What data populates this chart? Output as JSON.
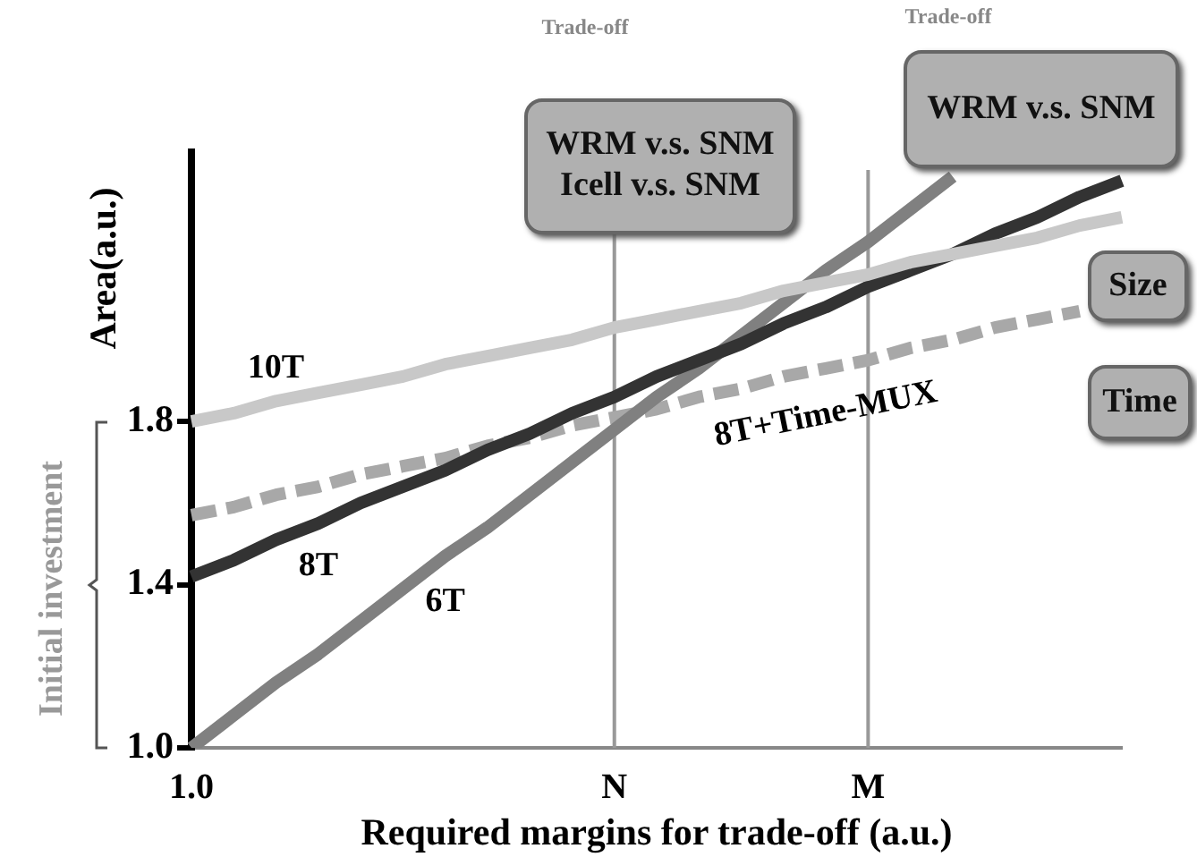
{
  "chart_data": {
    "type": "line",
    "xlabel": "Required margins for trade-off (a.u.)",
    "ylabel": "Area(a.u.)",
    "categories": [
      "1.0",
      null,
      null,
      null,
      null,
      null,
      null,
      null,
      null,
      null,
      "N",
      null,
      null,
      null,
      null,
      null,
      "M",
      null,
      null,
      null,
      null,
      null,
      null
    ],
    "series": [
      {
        "name": "10T",
        "color": "#c8c8c8",
        "values": [
          1.8,
          1.82,
          1.85,
          1.87,
          1.89,
          1.91,
          1.94,
          1.96,
          1.98,
          2.0,
          2.03,
          2.05,
          2.07,
          2.09,
          2.12,
          2.14,
          2.16,
          2.19,
          2.21,
          2.23,
          2.25,
          2.28,
          2.3
        ]
      },
      {
        "name": "8T",
        "color": "#333333",
        "values": [
          1.42,
          1.46,
          1.51,
          1.55,
          1.6,
          1.64,
          1.68,
          1.73,
          1.77,
          1.82,
          1.86,
          1.91,
          1.95,
          1.99,
          2.04,
          2.08,
          2.13,
          2.17,
          2.21,
          2.26,
          2.3,
          2.35,
          2.39
        ]
      },
      {
        "name": "6T",
        "color": "#808080",
        "values": [
          1.0,
          1.08,
          1.16,
          1.23,
          1.31,
          1.39,
          1.47,
          1.54,
          1.62,
          1.7,
          1.78,
          1.86,
          1.93,
          2.01,
          2.09,
          2.17,
          2.24,
          2.32,
          2.4,
          null,
          null,
          null,
          null
        ]
      },
      {
        "name": "8T+Time-MUX",
        "color": "#a8a8a8",
        "line_style": "dashed",
        "values": [
          1.57,
          1.59,
          1.62,
          1.64,
          1.67,
          1.69,
          1.71,
          1.74,
          1.76,
          1.79,
          1.81,
          1.83,
          1.86,
          1.88,
          1.91,
          1.93,
          1.95,
          1.98,
          2.0,
          2.03,
          2.05,
          2.07,
          null
        ]
      }
    ],
    "ylim": [
      1.0,
      2.46
    ],
    "yticks": [
      {
        "value": 1.0,
        "label": "1.0"
      },
      {
        "value": 1.4,
        "label": "1.4"
      },
      {
        "value": 1.8,
        "label": "1.8"
      }
    ],
    "ref_lines": [
      {
        "axis": "x",
        "value": "N",
        "color": "#999999"
      },
      {
        "axis": "x",
        "value": "M",
        "color": "#999999"
      }
    ],
    "annotations": [
      "Trade-off",
      "WRM v.s. SNM\nIcell v.s. SNM",
      "Trade-off",
      "WRM v.s. SNM",
      "Size",
      "Time",
      "Initial investment"
    ],
    "grid": false,
    "legend": false,
    "marker": "none"
  }
}
